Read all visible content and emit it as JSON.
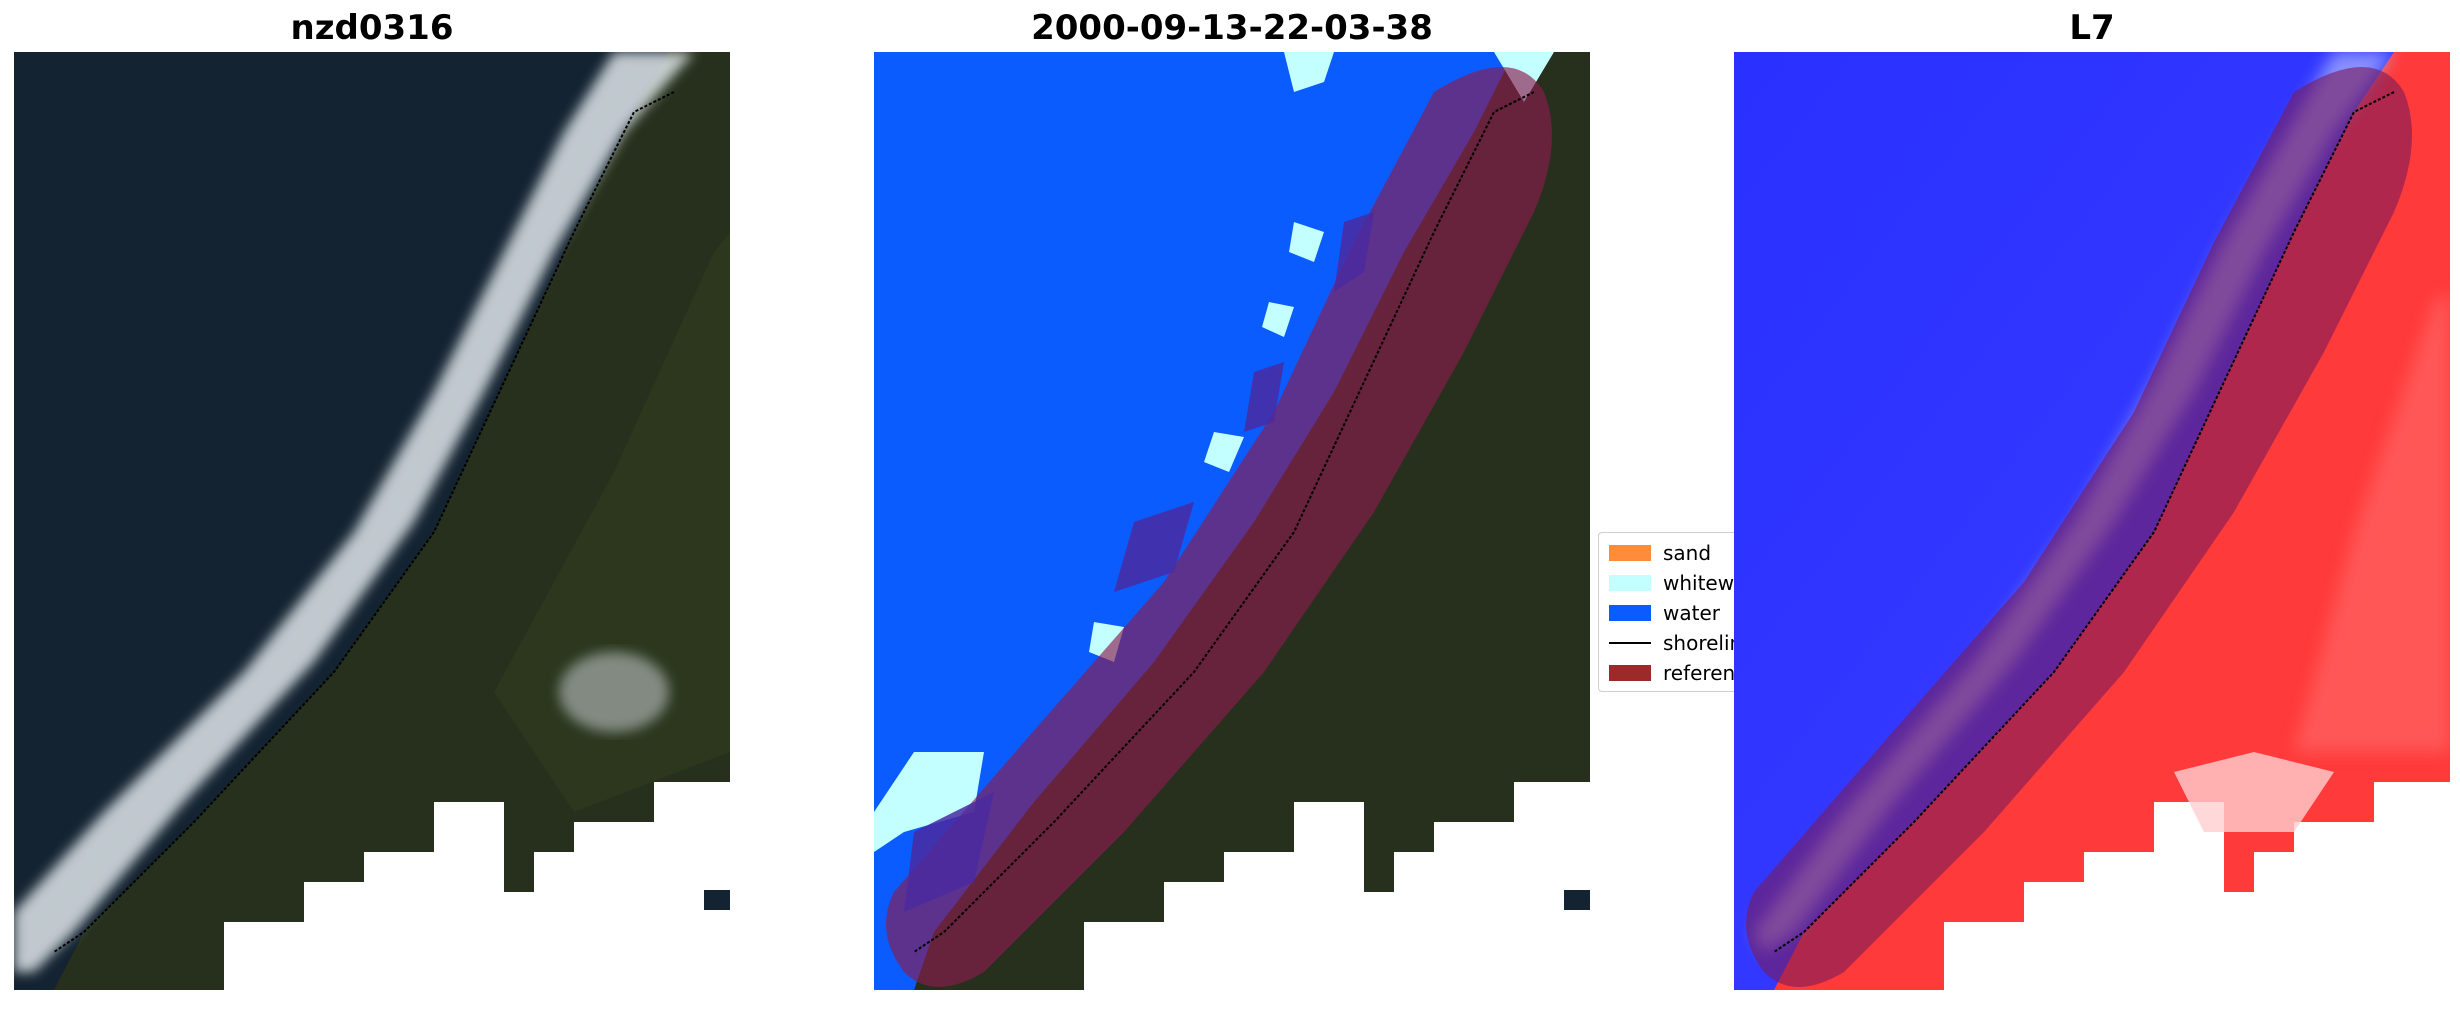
{
  "panels": [
    {
      "title": "nzd0316"
    },
    {
      "title": "2000-09-13-22-03-38"
    },
    {
      "title": "L7"
    }
  ],
  "legend": {
    "items": [
      {
        "label": "sand",
        "color": "#ff8c3a"
      },
      {
        "label": "whitewater",
        "color": "#c4ffff"
      },
      {
        "label": "water",
        "color": "#0a5cff"
      },
      {
        "label": "shoreline",
        "color": "#000000"
      },
      {
        "label": "reference",
        "color": "#9b2a2a"
      }
    ]
  },
  "colors": {
    "ocean": "#142331",
    "land": "#26301c",
    "surf": "#dfe6ea",
    "water_class": "#0a5cff",
    "whitewater_class": "#c4ffff",
    "buffer_overlay": "#8a1c4f",
    "index_water": "#1a26ff",
    "index_land": "#ff3a3a"
  }
}
